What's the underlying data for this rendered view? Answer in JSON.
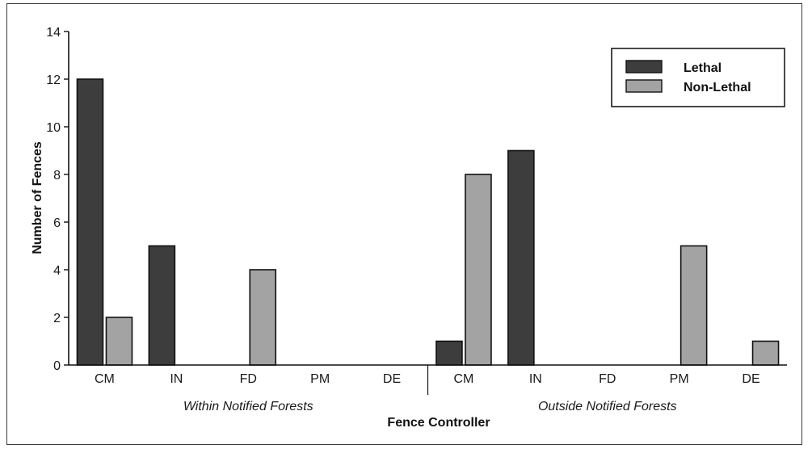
{
  "chart_data": {
    "type": "bar",
    "categories": [
      "CM",
      "IN",
      "FD",
      "PM",
      "DE",
      "CM",
      "IN",
      "FD",
      "PM",
      "DE"
    ],
    "groups": [
      {
        "label": "Within Notified Forests",
        "start": 0,
        "end": 4
      },
      {
        "label": "Outside Notified Forests",
        "start": 5,
        "end": 9
      }
    ],
    "series": [
      {
        "name": "Lethal",
        "color": "#3d3d3d",
        "values": [
          12,
          5,
          0,
          0,
          0,
          1,
          9,
          0,
          0,
          0
        ]
      },
      {
        "name": "Non-Lethal",
        "color": "#a3a3a3",
        "values": [
          2,
          0,
          4,
          0,
          0,
          8,
          0,
          0,
          5,
          1
        ]
      }
    ],
    "xlabel": "Fence Controller",
    "ylabel": "Number of Fences",
    "ylim": [
      0,
      14
    ],
    "yticks": [
      0,
      2,
      4,
      6,
      8,
      10,
      12,
      14
    ],
    "legend_position": "top-right",
    "grid": false
  }
}
